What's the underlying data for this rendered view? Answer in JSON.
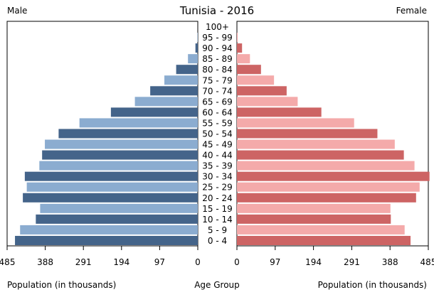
{
  "chart_data": {
    "type": "bar",
    "title": "Tunisia - 2016",
    "left_label": "Male",
    "right_label": "Female",
    "xlabel_left": "Population (in thousands)",
    "xlabel_center": "Age Group",
    "xlabel_right": "Population (in thousands)",
    "xlim": [
      0,
      485
    ],
    "x_ticks": [
      485,
      388,
      291,
      194,
      97,
      0
    ],
    "categories": [
      "0 - 4",
      "5 - 9",
      "10 - 14",
      "15 - 19",
      "20 - 24",
      "25 - 29",
      "30 - 34",
      "35 - 39",
      "40 - 44",
      "45 - 49",
      "50 - 54",
      "55 - 59",
      "60 - 64",
      "65 - 69",
      "70 - 74",
      "75 - 79",
      "80 - 84",
      "85 - 89",
      "90 - 94",
      "95 - 99",
      "100+"
    ],
    "series": [
      {
        "name": "Male",
        "values": [
          465,
          452,
          412,
          401,
          445,
          435,
          440,
          403,
          396,
          389,
          354,
          301,
          221,
          160,
          121,
          85,
          55,
          25,
          6,
          1,
          0
        ]
      },
      {
        "name": "Female",
        "values": [
          440,
          425,
          390,
          389,
          454,
          463,
          488,
          450,
          423,
          400,
          356,
          297,
          214,
          154,
          126,
          94,
          61,
          33,
          13,
          2,
          0
        ]
      }
    ],
    "colors": {
      "male_dark": "#44648a",
      "male_light": "#8bacd0",
      "female_dark": "#cd6464",
      "female_light": "#f4aaaa"
    }
  }
}
